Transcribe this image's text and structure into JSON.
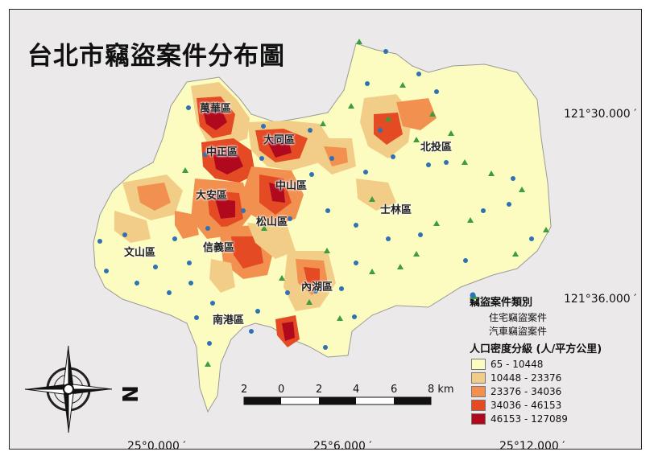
{
  "map": {
    "title": "台北市竊盜案件分布圖",
    "districts": [
      "萬華區",
      "中正區",
      "大同區",
      "中山區",
      "北投區",
      "大安區",
      "士林區",
      "松山區",
      "文山區",
      "信義區",
      "內湖區",
      "南港區"
    ],
    "coords": {
      "lat_top": "121°30.000 ′",
      "lat_mid": "121°36.000 ′",
      "lon_left": "25°0.000 ′",
      "lon_mid": "25°6.000 ′",
      "lon_right": "25°12.000 ′"
    },
    "north_arrow_label": "N",
    "scalebar": {
      "ticks": [
        "2",
        "0",
        "2",
        "4",
        "6",
        "8 km"
      ]
    },
    "legend": {
      "cases_title": "竊盜案件類別",
      "residential": "住宅竊盜案件",
      "vehicle": "汽車竊盜案件",
      "density_title": "人口密度分級 (人/平方公里)",
      "classes": [
        {
          "label": "65 - 10448",
          "color": "#fdfcc0"
        },
        {
          "label": "10448 - 23376",
          "color": "#f2cd87"
        },
        {
          "label": "23376 - 34036",
          "color": "#f29050"
        },
        {
          "label": "34036 - 46153",
          "color": "#e44a24"
        },
        {
          "label": "46153 - 127089",
          "color": "#b0091e"
        }
      ]
    },
    "colors": {
      "residential": "#3b9d3b",
      "vehicle": "#2f72b4",
      "frame_bg": "#ebe9e9"
    }
  }
}
